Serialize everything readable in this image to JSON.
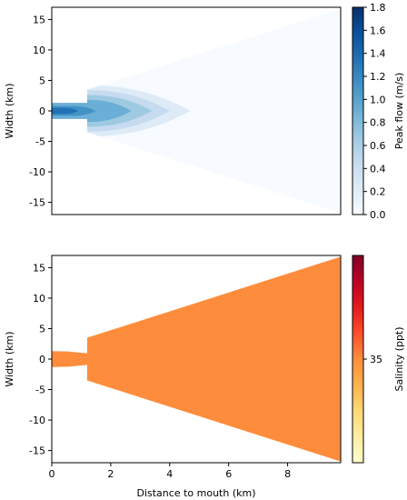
{
  "chart_data": [
    {
      "type": "heatmap",
      "title": "",
      "xlabel": "",
      "ylabel": "Width (km)",
      "xlim": [
        0,
        9.8
      ],
      "ylim": [
        -17,
        17
      ],
      "y_ticks": [
        15,
        10,
        5,
        0,
        -5,
        -10,
        -15
      ],
      "x_ticks": [],
      "colorbar": {
        "label": "Peak flow (m/s)",
        "range": [
          0.0,
          1.8
        ],
        "ticks": [
          "1.8",
          "1.6",
          "1.4",
          "1.2",
          "1.0",
          "0.8",
          "0.6",
          "0.4",
          "0.2",
          "0.0"
        ],
        "colormap": "Blues",
        "colors": [
          "#f7fbff",
          "#deebf7",
          "#c6dbef",
          "#9ecae1",
          "#6baed6",
          "#4292c6",
          "#2171b5",
          "#08519c",
          "#08306b"
        ]
      },
      "channel_outline": {
        "mouth_half_width_km": 1.3,
        "step_x_km": 1.2,
        "step_half_width_km": 3.5,
        "end_x_km": 9.8,
        "end_half_width_km": 16.8
      },
      "flow_contours": [
        {
          "level": 0.1,
          "reach_km": 9.8,
          "half_width_km": 16.8
        },
        {
          "level": 0.2,
          "reach_km": 4.7,
          "half_width_km": 4.2
        },
        {
          "level": 0.4,
          "reach_km": 4.0,
          "half_width_km": 3.4
        },
        {
          "level": 0.6,
          "reach_km": 3.4,
          "half_width_km": 2.6
        },
        {
          "level": 0.8,
          "reach_km": 2.7,
          "half_width_km": 1.8
        },
        {
          "level": 1.0,
          "reach_km": 2.1,
          "half_width_km": 1.2
        },
        {
          "level": 1.2,
          "reach_km": 1.5,
          "half_width_km": 0.8
        },
        {
          "level": 1.4,
          "reach_km": 0.9,
          "half_width_km": 0.5
        }
      ]
    },
    {
      "type": "heatmap",
      "title": "",
      "xlabel": "Distance to mouth (km)",
      "ylabel": "Width (km)",
      "xlim": [
        0,
        9.8
      ],
      "ylim": [
        -17,
        17
      ],
      "y_ticks": [
        15,
        10,
        5,
        0,
        -5,
        -10,
        -15
      ],
      "x_ticks": [
        0,
        2,
        4,
        6,
        8
      ],
      "colorbar": {
        "label": "Salinity (ppt)",
        "ticks": [
          "35"
        ],
        "colormap": "YlOrRd",
        "colors": [
          "#ffffcc",
          "#ffeda0",
          "#fed976",
          "#feb24c",
          "#fd8d3c",
          "#fc4e2a",
          "#e31a1c",
          "#bd0026",
          "#800026"
        ]
      },
      "fill_color": "#fd8d3c",
      "salinity_value": 35,
      "channel_outline": {
        "mouth_half_width_km": 1.3,
        "neck_x_km": 0.55,
        "neck_half_width_km": 1.25,
        "narrow_x_km": 1.2,
        "narrow_half_width_km": 0.95,
        "step_x_km": 1.2,
        "step_half_width_km": 3.5,
        "end_x_km": 9.8,
        "end_half_width_km": 16.8
      }
    }
  ]
}
